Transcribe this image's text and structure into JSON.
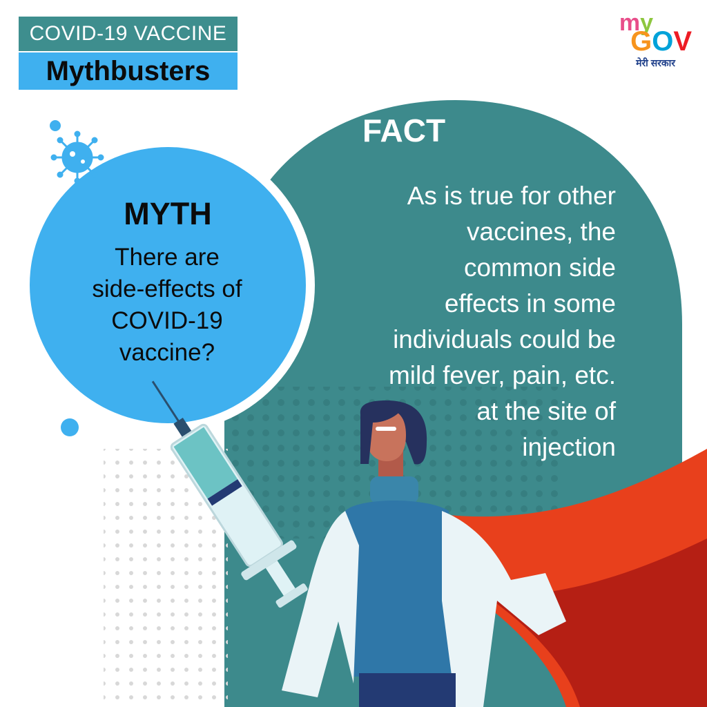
{
  "header": {
    "topic": "COVID-19 VACCINE",
    "series": "Mythbusters"
  },
  "logo": {
    "my": "my",
    "gov": "GOV",
    "tagline": "मेरी सरकार",
    "colors": {
      "my_m": "#e84e8a",
      "my_y": "#8dc63f",
      "gov_g": "#f7941d",
      "gov_o": "#00a2d9",
      "gov_v": "#ed1c24"
    }
  },
  "fact": {
    "title": "FACT",
    "lines": [
      "As is true for other",
      "vaccines, the",
      "common side",
      "effects in some",
      "individuals could be",
      "mild fever, pain, etc.",
      "at the site of",
      "injection"
    ]
  },
  "myth": {
    "title": "MYTH",
    "lines": [
      "There are",
      "side-effects of",
      "COVID-19",
      "vaccine?"
    ]
  },
  "colors": {
    "teal": "#3d8a8c",
    "blue": "#3fb0ef",
    "cape_red": "#e8401c",
    "cape_dark": "#b51f14",
    "shirt": "#2f77a8",
    "coat": "#eaf4f7",
    "hair": "#26315e"
  },
  "icons": [
    "virus-icon",
    "syringe-icon",
    "superhero-doctor-illustration"
  ]
}
